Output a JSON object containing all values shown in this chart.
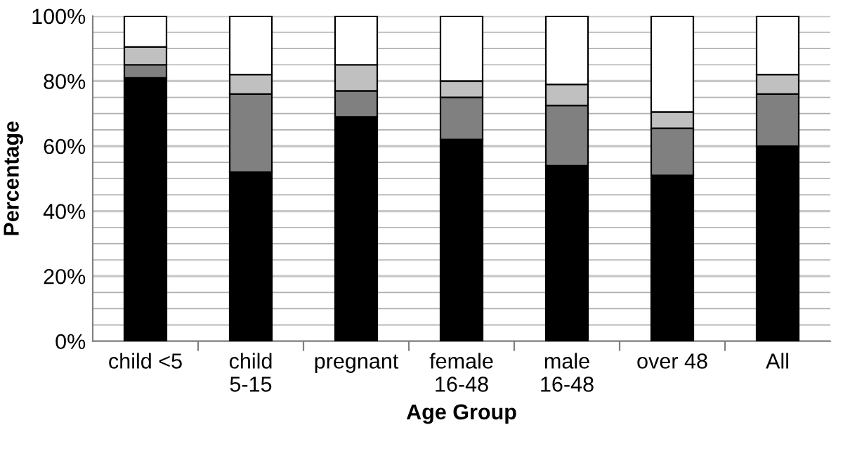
{
  "chart_data": {
    "type": "bar",
    "stacked": true,
    "xlabel": "Age Group",
    "ylabel": "Percentage",
    "categories": [
      "child <5",
      "child\n5-15",
      "pregnant",
      "female\n16-48",
      "male\n16-48",
      "over 48",
      "All"
    ],
    "series": [
      {
        "color": "#000000",
        "values": [
          81,
          52,
          69,
          62,
          54,
          51,
          60
        ]
      },
      {
        "color": "#808080",
        "values": [
          4,
          24,
          8,
          13,
          18.5,
          14.5,
          16
        ]
      },
      {
        "color": "#c0c0c0",
        "values": [
          5.5,
          6,
          8,
          5,
          6.5,
          5,
          6
        ]
      },
      {
        "color": "#ffffff",
        "values": [
          9.5,
          18,
          15,
          20,
          21,
          29.5,
          18
        ]
      }
    ],
    "ylim": [
      0,
      100
    ],
    "yticks": [
      {
        "value": 0,
        "label": "0%"
      },
      {
        "value": 5,
        "label": null
      },
      {
        "value": 10,
        "label": null
      },
      {
        "value": 15,
        "label": null
      },
      {
        "value": 20,
        "label": "20%"
      },
      {
        "value": 25,
        "label": null
      },
      {
        "value": 30,
        "label": null
      },
      {
        "value": 35,
        "label": null
      },
      {
        "value": 40,
        "label": "40%"
      },
      {
        "value": 45,
        "label": null
      },
      {
        "value": 50,
        "label": null
      },
      {
        "value": 55,
        "label": null
      },
      {
        "value": 60,
        "label": "60%"
      },
      {
        "value": 65,
        "label": null
      },
      {
        "value": 70,
        "label": null
      },
      {
        "value": 75,
        "label": null
      },
      {
        "value": 80,
        "label": "80%"
      },
      {
        "value": 85,
        "label": null
      },
      {
        "value": 90,
        "label": null
      },
      {
        "value": 95,
        "label": null
      },
      {
        "value": 100,
        "label": "100%"
      }
    ],
    "grid": "y",
    "legend": false
  }
}
